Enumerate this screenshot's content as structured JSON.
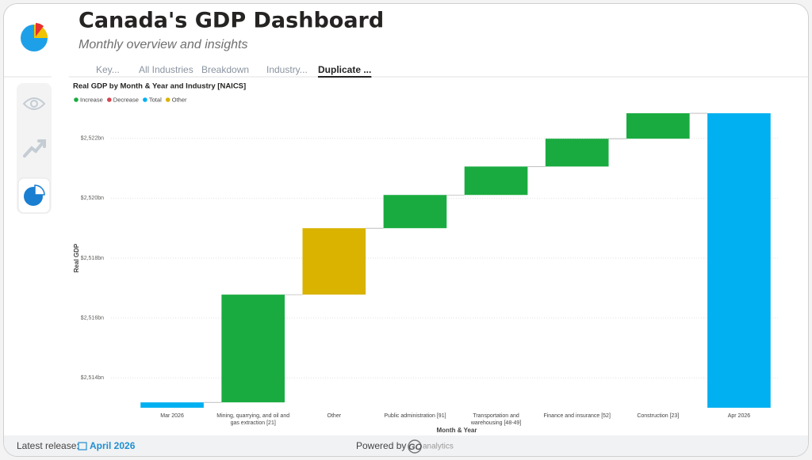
{
  "header": {
    "title": "Canada's GDP Dashboard",
    "subtitle": "Monthly overview and insights"
  },
  "tabs": [
    "Key...",
    "All Industries",
    "Breakdown",
    "Industry...",
    "Duplicate ..."
  ],
  "active_tab": 4,
  "chart_data": {
    "type": "waterfall",
    "title": "Real GDP by Month & Year and Industry [NAICS]",
    "x_label": "Month & Year",
    "y_label": "Real GDP",
    "legend": [
      {
        "name": "Increase",
        "color": "#1aab40"
      },
      {
        "name": "Decrease",
        "color": "#d64550"
      },
      {
        "name": "Total",
        "color": "#00b0f0"
      },
      {
        "name": "Other",
        "color": "#d9b300"
      }
    ],
    "categories": [
      "Mar 2026",
      "Mining, quarrying, and oil and gas extraction [21]",
      "Other",
      "Public administration [91]",
      "Transportation and warehousing [48-49]",
      "Finance and insurance [52]",
      "Construction [23]",
      "Apr 2026"
    ],
    "kinds": [
      2,
      0,
      3,
      0,
      0,
      0,
      0,
      2
    ],
    "values": [
      2513.18,
      3.6,
      2.22,
      1.11,
      0.95,
      0.93,
      0.85,
      2522.84
    ],
    "ylim": [
      2513,
      2523
    ],
    "yticks": [
      {
        "value": 2514,
        "label": "$2,514bn"
      },
      {
        "value": 2516,
        "label": "$2,516bn"
      },
      {
        "value": 2518,
        "label": "$2,518bn"
      },
      {
        "value": 2520,
        "label": "$2,520bn"
      },
      {
        "value": 2522,
        "label": "$2,522bn"
      }
    ],
    "grid": true
  },
  "footer": {
    "release_label": "Latest release:",
    "release_value": "April 2026",
    "powered_by": "Powered by",
    "brand_mark": "GO",
    "brand_name": "analytics"
  }
}
